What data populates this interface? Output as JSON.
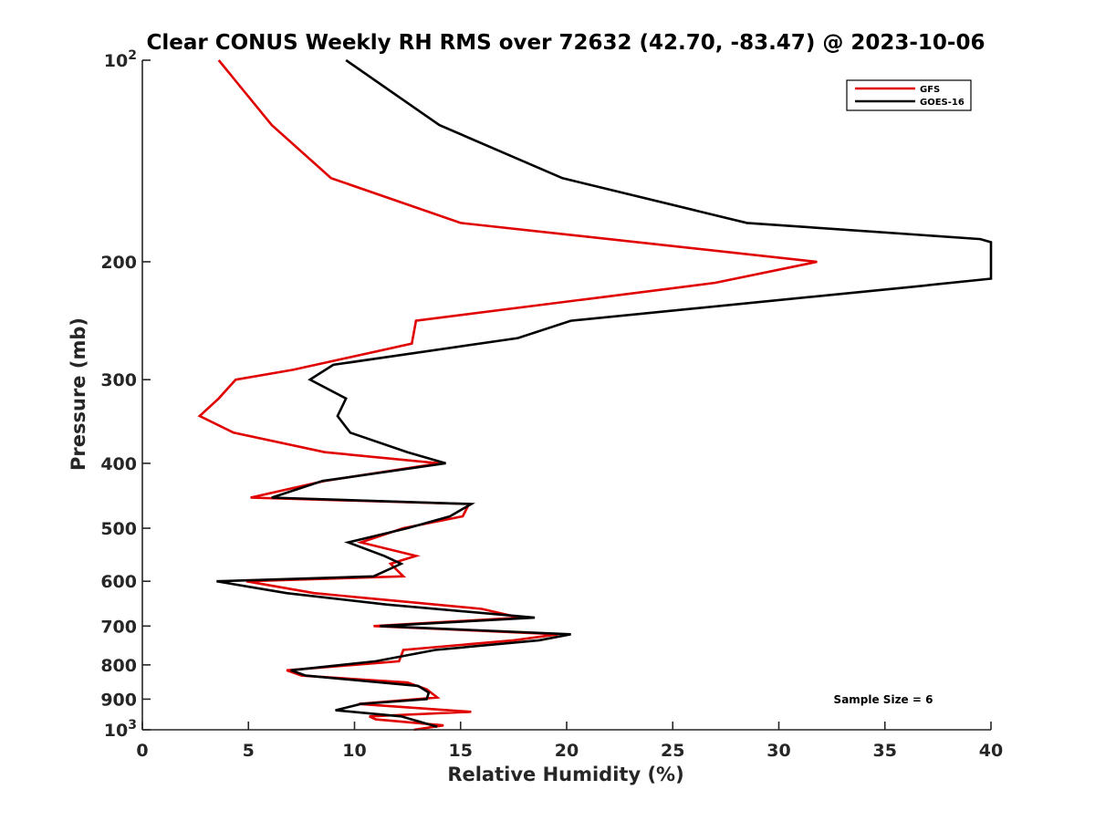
{
  "chart_data": {
    "type": "line",
    "title": "Clear CONUS Weekly RH RMS over 72632 (42.70, -83.47) @ 2023-10-06",
    "xlabel": "Relative Humidity (%)",
    "ylabel": "Pressure (mb)",
    "xlim": [
      0,
      40
    ],
    "ylim": [
      100,
      1000
    ],
    "y_scale": "log",
    "y_reversed": true,
    "x_ticks": [
      "0",
      "5",
      "10",
      "15",
      "20",
      "25",
      "30",
      "35",
      "40"
    ],
    "y_ticks": [
      {
        "value": 100,
        "base": "10",
        "exp": "2"
      },
      {
        "value": 200,
        "label": "200"
      },
      {
        "value": 300,
        "label": "300"
      },
      {
        "value": 400,
        "label": "400"
      },
      {
        "value": 500,
        "label": "500"
      },
      {
        "value": 600,
        "label": "600"
      },
      {
        "value": 700,
        "label": "700"
      },
      {
        "value": 800,
        "label": "800"
      },
      {
        "value": 900,
        "label": "900"
      },
      {
        "value": 1000,
        "base": "10",
        "exp": "3"
      }
    ],
    "legend_position": "top-right",
    "grid": false,
    "annotation": "Sample Size = 6",
    "series": [
      {
        "name": "GFS",
        "color": "#e00000",
        "points": [
          [
            3.6,
            100
          ],
          [
            6.1,
            125
          ],
          [
            8.9,
            150
          ],
          [
            15.0,
            175
          ],
          [
            31.8,
            200
          ],
          [
            27.0,
            215
          ],
          [
            12.9,
            245
          ],
          [
            12.7,
            265
          ],
          [
            7.1,
            290
          ],
          [
            4.4,
            300
          ],
          [
            3.6,
            320
          ],
          [
            2.7,
            340
          ],
          [
            4.3,
            360
          ],
          [
            8.6,
            385
          ],
          [
            14.0,
            400
          ],
          [
            8.6,
            425
          ],
          [
            5.1,
            450
          ],
          [
            15.4,
            460
          ],
          [
            15.1,
            480
          ],
          [
            12.3,
            500
          ],
          [
            10.3,
            525
          ],
          [
            12.9,
            550
          ],
          [
            11.7,
            565
          ],
          [
            12.3,
            590
          ],
          [
            4.9,
            600
          ],
          [
            8.1,
            625
          ],
          [
            16.0,
            660
          ],
          [
            17.8,
            680
          ],
          [
            10.9,
            700
          ],
          [
            19.6,
            720
          ],
          [
            17.5,
            735
          ],
          [
            12.3,
            760
          ],
          [
            12.1,
            790
          ],
          [
            6.8,
            815
          ],
          [
            7.5,
            830
          ],
          [
            12.5,
            850
          ],
          [
            13.4,
            870
          ],
          [
            13.9,
            895
          ],
          [
            10.2,
            915
          ],
          [
            15.5,
            940
          ],
          [
            10.7,
            955
          ],
          [
            11.0,
            965
          ],
          [
            14.2,
            985
          ],
          [
            12.8,
            1000
          ]
        ]
      },
      {
        "name": "GOES-16",
        "color": "#000000",
        "points": [
          [
            9.6,
            100
          ],
          [
            14.0,
            125
          ],
          [
            19.8,
            150
          ],
          [
            28.5,
            175
          ],
          [
            39.5,
            185
          ],
          [
            40.0,
            187
          ],
          [
            40.0,
            212
          ],
          [
            36.3,
            218
          ],
          [
            20.2,
            245
          ],
          [
            17.7,
            260
          ],
          [
            9.0,
            285
          ],
          [
            7.9,
            300
          ],
          [
            9.6,
            320
          ],
          [
            9.2,
            340
          ],
          [
            9.8,
            360
          ],
          [
            12.5,
            385
          ],
          [
            14.3,
            400
          ],
          [
            8.5,
            425
          ],
          [
            6.1,
            450
          ],
          [
            15.5,
            460
          ],
          [
            14.5,
            480
          ],
          [
            12.5,
            500
          ],
          [
            9.7,
            525
          ],
          [
            11.4,
            550
          ],
          [
            12.2,
            565
          ],
          [
            10.9,
            590
          ],
          [
            3.5,
            600
          ],
          [
            6.8,
            625
          ],
          [
            11.5,
            650
          ],
          [
            18.5,
            680
          ],
          [
            11.2,
            700
          ],
          [
            20.2,
            720
          ],
          [
            18.7,
            735
          ],
          [
            13.8,
            760
          ],
          [
            11.0,
            790
          ],
          [
            7.0,
            815
          ],
          [
            7.7,
            830
          ],
          [
            13.0,
            860
          ],
          [
            13.5,
            880
          ],
          [
            13.4,
            900
          ],
          [
            10.3,
            915
          ],
          [
            9.1,
            935
          ],
          [
            12.2,
            955
          ],
          [
            13.9,
            990
          ]
        ]
      }
    ]
  }
}
